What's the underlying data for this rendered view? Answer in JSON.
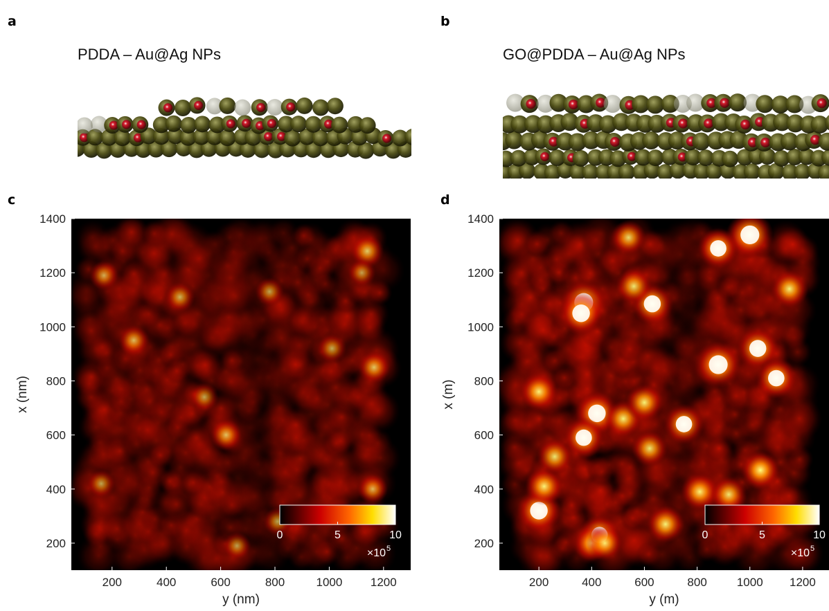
{
  "panels": {
    "a": {
      "letter": "a",
      "title": "PDDA – Au@Ag NPs"
    },
    "b": {
      "letter": "b",
      "title": "GO@PDDA – Au@Ag NPs"
    },
    "c": {
      "letter": "c"
    },
    "d": {
      "letter": "d"
    }
  },
  "colors": {
    "hot_low": "#000000",
    "hot_mid": "#e31a00",
    "hot_high": "#ffffff",
    "particle": "#4a4a12",
    "particle_core": "#c0001a"
  },
  "chart_data": [
    {
      "type": "heatmap",
      "panel": "c",
      "xlabel": "y (nm)",
      "ylabel": "x (nm)",
      "xlim": [
        50,
        1300
      ],
      "ylim": [
        100,
        1400
      ],
      "x_ticks": [
        200,
        400,
        600,
        800,
        1000,
        1200
      ],
      "y_ticks": [
        200,
        400,
        600,
        800,
        1000,
        1200,
        1400
      ],
      "colorbar": {
        "min": 0,
        "max": 10,
        "ticks": [
          0,
          5,
          10
        ],
        "multiplier": "×10",
        "exponent": "5",
        "colormap": "hot",
        "placement": "bottom-right"
      },
      "hotspots": [
        {
          "y": 1140,
          "x": 1280,
          "v": 5.5
        },
        {
          "y": 1165,
          "x": 850,
          "v": 5.2
        },
        {
          "y": 620,
          "x": 600,
          "v": 5.0
        },
        {
          "y": 1160,
          "x": 400,
          "v": 4.5
        },
        {
          "y": 280,
          "x": 950,
          "v": 4.8
        },
        {
          "y": 450,
          "x": 1110,
          "v": 4.5
        },
        {
          "y": 160,
          "x": 420,
          "v": 4.0
        },
        {
          "y": 170,
          "x": 1190,
          "v": 4.2
        },
        {
          "y": 540,
          "x": 740,
          "v": 4.0
        },
        {
          "y": 1010,
          "x": 920,
          "v": 4.2
        },
        {
          "y": 810,
          "x": 280,
          "v": 4.0
        },
        {
          "y": 660,
          "x": 190,
          "v": 3.8
        },
        {
          "y": 1120,
          "x": 1200,
          "v": 3.8
        },
        {
          "y": 780,
          "x": 1130,
          "v": 4.0
        }
      ]
    },
    {
      "type": "heatmap",
      "panel": "d",
      "xlabel": "y (m)",
      "ylabel": "x (m)",
      "xlim": [
        50,
        1300
      ],
      "ylim": [
        100,
        1400
      ],
      "x_ticks": [
        200,
        400,
        600,
        800,
        1000,
        1200
      ],
      "y_ticks": [
        200,
        400,
        600,
        800,
        1000,
        1200,
        1400
      ],
      "colorbar": {
        "min": 0,
        "max": 10,
        "ticks": [
          0,
          5,
          10
        ],
        "multiplier": "×10",
        "exponent": "5",
        "colormap": "hot",
        "placement": "bottom-right"
      },
      "hotspots": [
        {
          "y": 1000,
          "x": 1340,
          "v": 10
        },
        {
          "y": 880,
          "x": 860,
          "v": 10
        },
        {
          "y": 370,
          "x": 1090,
          "v": 10
        },
        {
          "y": 360,
          "x": 1050,
          "v": 9
        },
        {
          "y": 880,
          "x": 1290,
          "v": 8
        },
        {
          "y": 630,
          "x": 1085,
          "v": 8.5
        },
        {
          "y": 1030,
          "x": 920,
          "v": 8.5
        },
        {
          "y": 200,
          "x": 320,
          "v": 9
        },
        {
          "y": 420,
          "x": 680,
          "v": 9
        },
        {
          "y": 370,
          "x": 590,
          "v": 8
        },
        {
          "y": 1100,
          "x": 810,
          "v": 8
        },
        {
          "y": 1040,
          "x": 470,
          "v": 7.5
        },
        {
          "y": 430,
          "x": 230,
          "v": 8
        },
        {
          "y": 750,
          "x": 640,
          "v": 8
        },
        {
          "y": 200,
          "x": 760,
          "v": 7
        },
        {
          "y": 810,
          "x": 390,
          "v": 7
        },
        {
          "y": 520,
          "x": 660,
          "v": 7
        },
        {
          "y": 600,
          "x": 720,
          "v": 7
        },
        {
          "y": 680,
          "x": 270,
          "v": 7
        },
        {
          "y": 1150,
          "x": 1140,
          "v": 7
        },
        {
          "y": 220,
          "x": 410,
          "v": 7
        },
        {
          "y": 260,
          "x": 520,
          "v": 6.5
        },
        {
          "y": 560,
          "x": 1150,
          "v": 6.5
        },
        {
          "y": 920,
          "x": 380,
          "v": 6.5
        },
        {
          "y": 620,
          "x": 550,
          "v": 6.5
        },
        {
          "y": 400,
          "x": 200,
          "v": 6.5
        },
        {
          "y": 450,
          "x": 200,
          "v": 6.5
        },
        {
          "y": 540,
          "x": 1330,
          "v": 6
        }
      ]
    }
  ]
}
